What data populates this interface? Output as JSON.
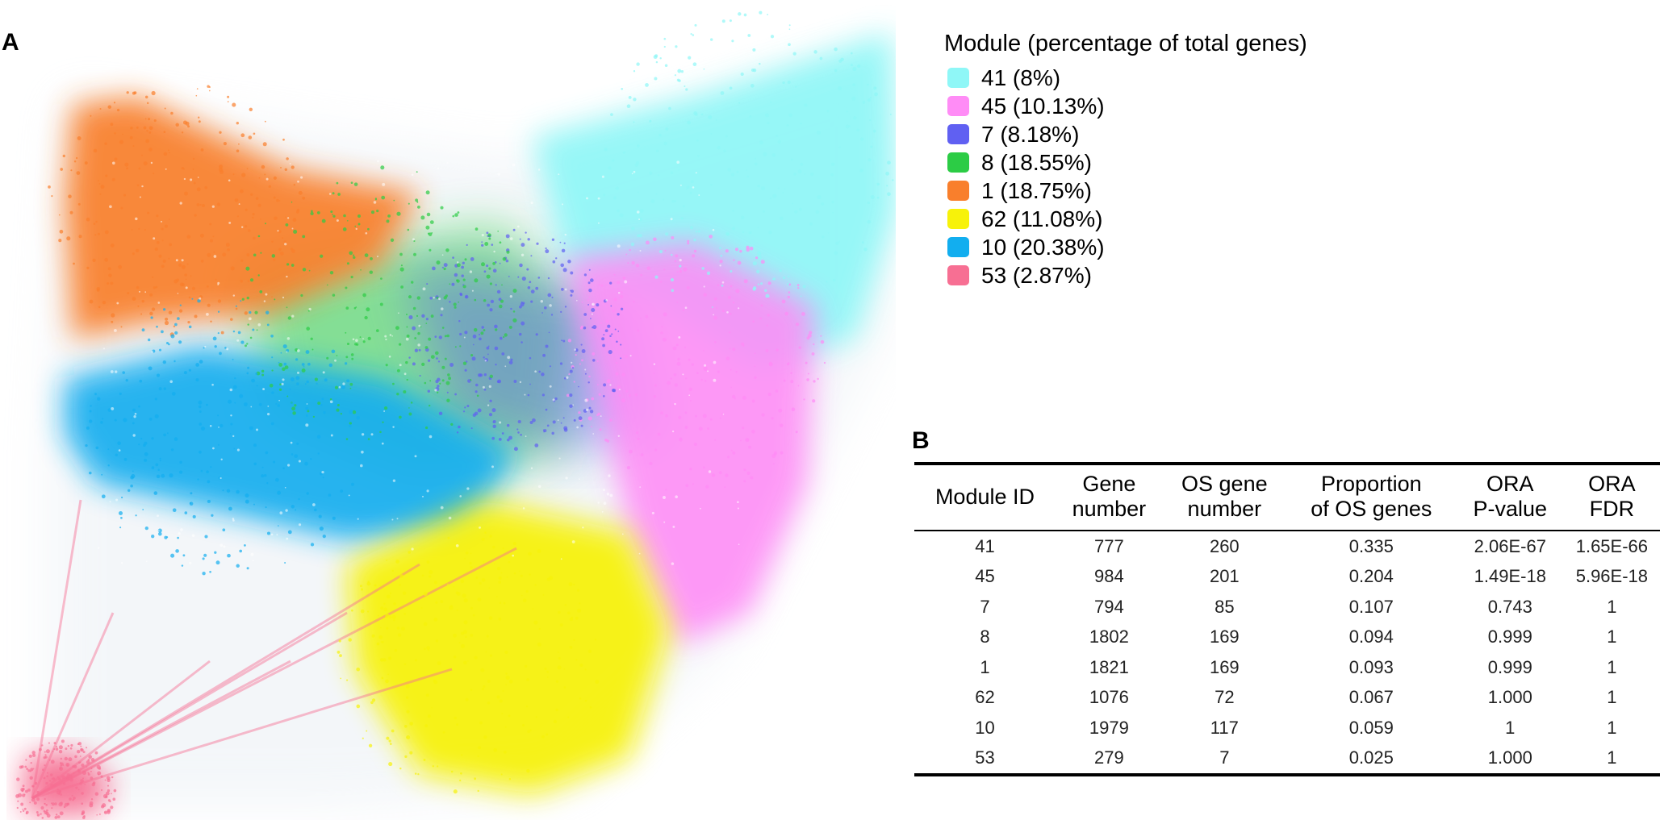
{
  "panel_a_label": "A",
  "panel_b_label": "B",
  "legend": {
    "title": "Module (percentage of total genes)",
    "items": [
      {
        "label": "41 (8%)",
        "color": "#8ff7f7"
      },
      {
        "label": "45 (10.13%)",
        "color": "#ff8cf6"
      },
      {
        "label": "7 (8.18%)",
        "color": "#6060f2"
      },
      {
        "label": "8 (18.55%)",
        "color": "#2ccc45"
      },
      {
        "label": "1 (18.75%)",
        "color": "#f97f2c"
      },
      {
        "label": "62 (11.08%)",
        "color": "#f7f20a"
      },
      {
        "label": "10 (20.38%)",
        "color": "#12aeef"
      },
      {
        "label": "53 (2.87%)",
        "color": "#f76f93"
      }
    ]
  },
  "table": {
    "headers": [
      [
        "Module ID"
      ],
      [
        "Gene",
        "number"
      ],
      [
        "OS gene",
        "number"
      ],
      [
        "Proportion",
        "of OS genes"
      ],
      [
        "ORA",
        "P-value"
      ],
      [
        "ORA",
        "FDR"
      ]
    ],
    "rows": [
      [
        "41",
        "777",
        "260",
        "0.335",
        "2.06E-67",
        "1.65E-66"
      ],
      [
        "45",
        "984",
        "201",
        "0.204",
        "1.49E-18",
        "5.96E-18"
      ],
      [
        "7",
        "794",
        "85",
        "0.107",
        "0.743",
        "1"
      ],
      [
        "8",
        "1802",
        "169",
        "0.094",
        "0.999",
        "1"
      ],
      [
        "1",
        "1821",
        "169",
        "0.093",
        "0.999",
        "1"
      ],
      [
        "62",
        "1076",
        "72",
        "0.067",
        "1.000",
        "1"
      ],
      [
        "10",
        "1979",
        "117",
        "0.059",
        "1",
        "1"
      ],
      [
        "53",
        "279",
        "7",
        "0.025",
        "1.000",
        "1"
      ]
    ]
  }
}
